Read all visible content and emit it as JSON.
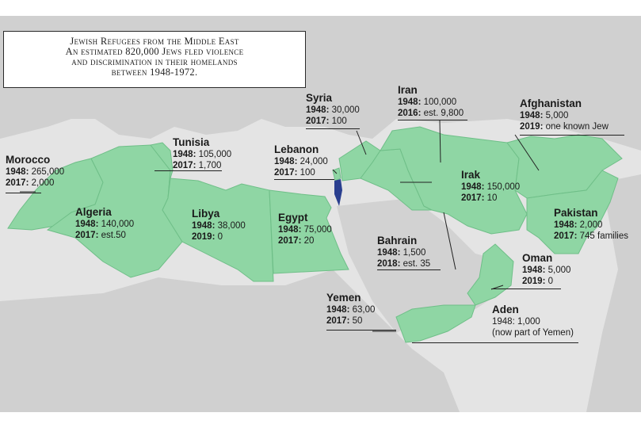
{
  "title_lines": [
    "Jewish Refugees from the Middle East",
    "An estimated 820,000 Jews fled violence",
    "and discrimination in their homelands",
    "between 1948-1972."
  ],
  "colors": {
    "highlight": "#8fd6a4",
    "highlight_border": "#6fbf88",
    "land": "#d0d0d0",
    "sea": "#e4e4e4",
    "israel": "#2a3f8f",
    "leader_line": "#222222"
  },
  "countries": {
    "morocco": {
      "name": "Morocco",
      "r1y": "1948:",
      "r1v": " 265,000",
      "r2y": "2017:",
      "r2v": " 2,000"
    },
    "algeria": {
      "name": "Algeria",
      "r1y": "1948:",
      "r1v": " 140,000",
      "r2y": "2017:",
      "r2v": " est.50"
    },
    "tunisia": {
      "name": "Tunisia",
      "r1y": "1948:",
      "r1v": " 105,000",
      "r2y": "2017:",
      "r2v": " 1,700"
    },
    "libya": {
      "name": "Libya",
      "r1y": "1948:",
      "r1v": " 38,000",
      "r2y": "2019:",
      "r2v": " 0"
    },
    "egypt": {
      "name": "Egypt",
      "r1y": "1948:",
      "r1v": " 75,000",
      "r2y": "2017:",
      "r2v": " 20"
    },
    "lebanon": {
      "name": "Lebanon",
      "r1y": "1948:",
      "r1v": " 24,000",
      "r2y": "2017:",
      "r2v": " 100"
    },
    "syria": {
      "name": "Syria",
      "r1y": "1948:",
      "r1v": " 30,000",
      "r2y": "2017:",
      "r2v": " 100"
    },
    "iran": {
      "name": "Iran",
      "r1y": "1948:",
      "r1v": " 100,000",
      "r2y": "2016:",
      "r2v": " est. 9,800"
    },
    "afghanistan": {
      "name": "Afghanistan",
      "r1y": "1948:",
      "r1v": " 5,000",
      "r2y": "2019:",
      "r2v": " one known Jew"
    },
    "irak": {
      "name": "Irak",
      "r1y": "1948:",
      "r1v": " 150,000",
      "r2y": "2017:",
      "r2v": " 10"
    },
    "pakistan": {
      "name": "Pakistan",
      "r1y": "1948:",
      "r1v": " 2,000",
      "r2y": "2017:",
      "r2v": " 745 families"
    },
    "bahrain": {
      "name": "Bahrain",
      "r1y": "1948:",
      "r1v": " 1,500",
      "r2y": "2018:",
      "r2v": " est. 35"
    },
    "oman": {
      "name": "Oman",
      "r1y": "1948:",
      "r1v": " 5,000",
      "r2y": "2019:",
      "r2v": " 0"
    },
    "yemen": {
      "name": "Yemen",
      "r1y": "1948:",
      "r1v": " 63,00",
      "r2y": "2017:",
      "r2v": " 50"
    },
    "aden": {
      "name": "Aden",
      "r1y": "",
      "r1v": "1948: 1,000",
      "r2y": "",
      "r2v": "(now part of Yemen)"
    }
  }
}
